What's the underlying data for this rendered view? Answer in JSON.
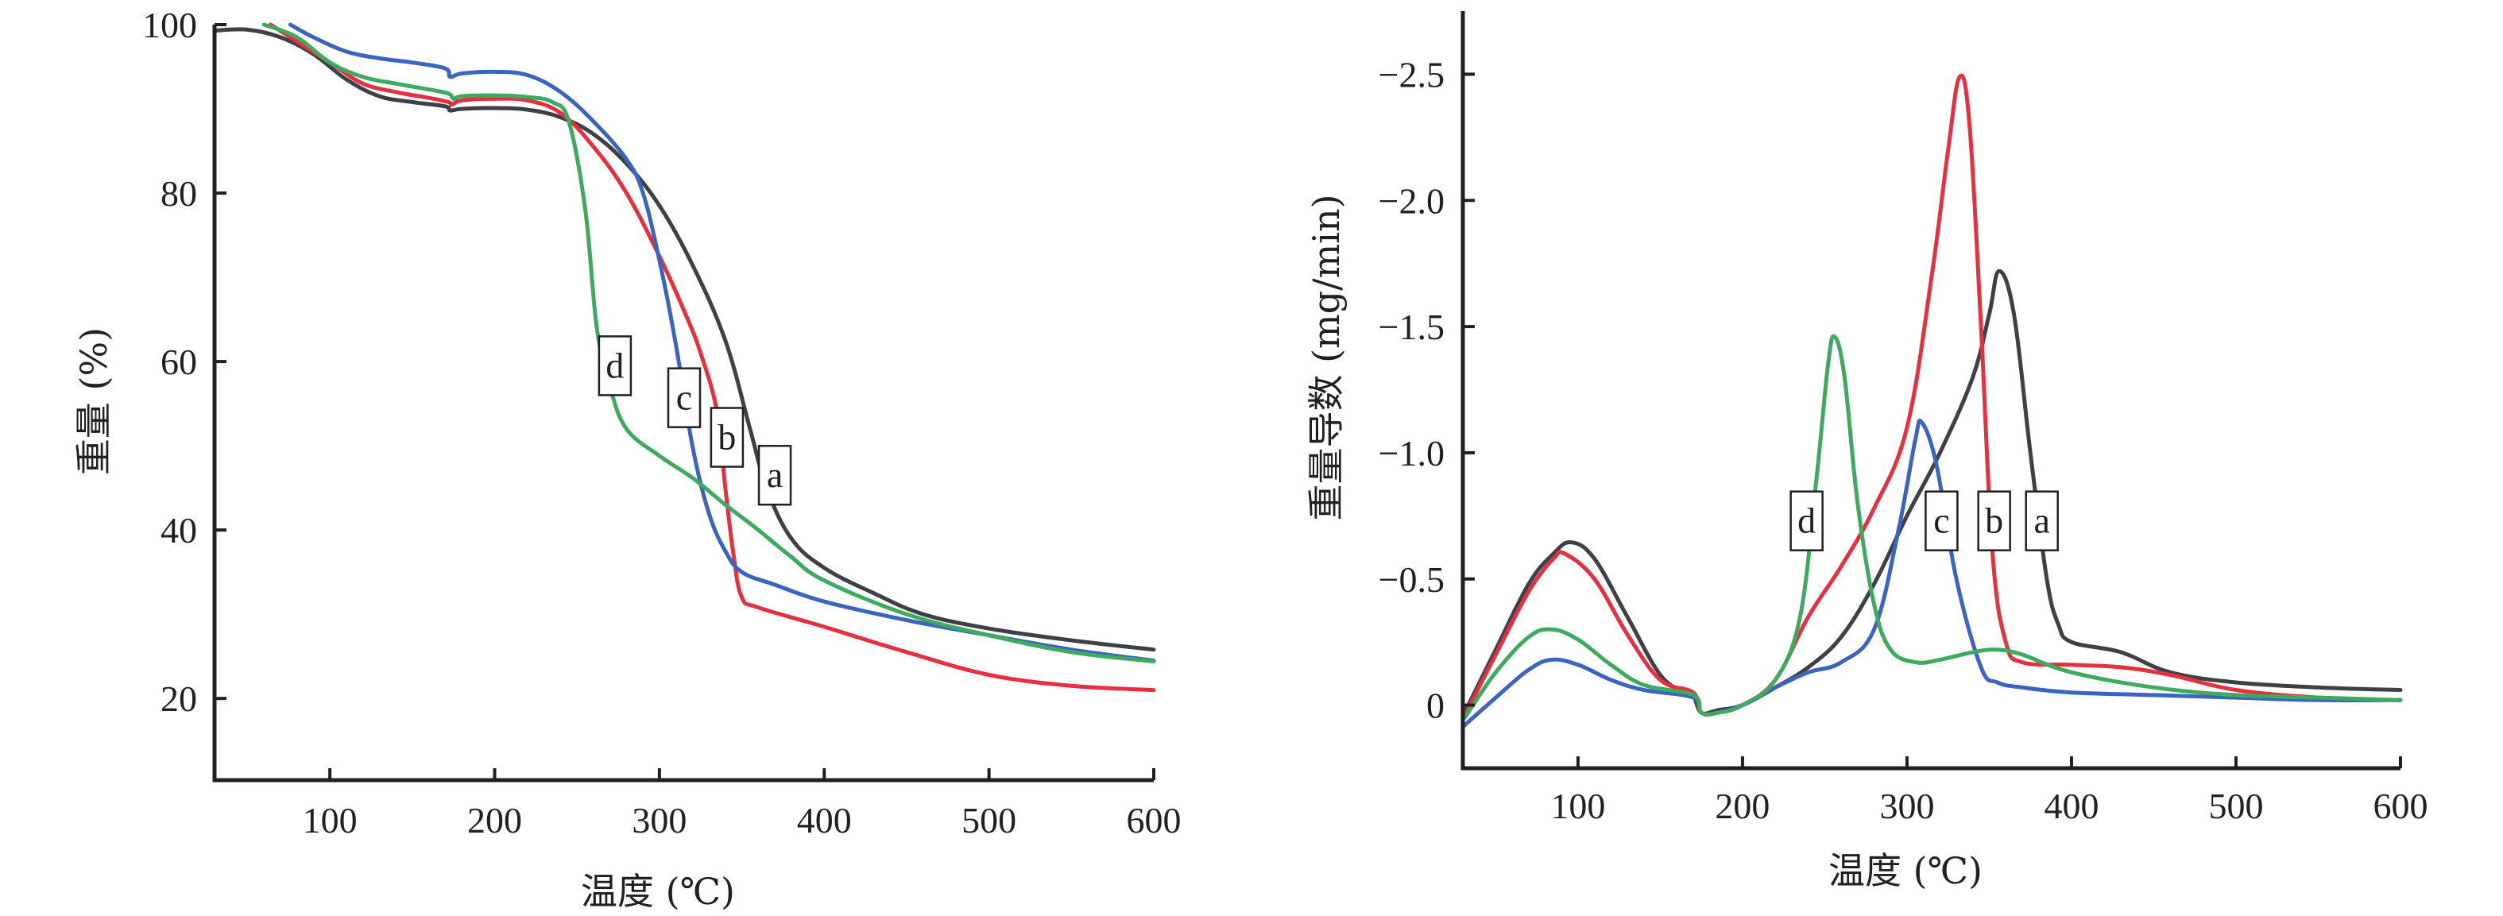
{
  "chart_data": [
    {
      "id": "tg",
      "type": "line",
      "title": "",
      "xlabel": "温度 (℃)",
      "ylabel": "重量 (%)",
      "xlim": [
        30,
        600
      ],
      "ylim": [
        10.3,
        100
      ],
      "y_inverted": false,
      "grid": false,
      "legend": "inline-labels",
      "xticks": [
        100,
        200,
        300,
        400,
        500,
        600
      ],
      "xtick_labels": [
        "100",
        "200",
        "300",
        "400",
        "500",
        "600"
      ],
      "yticks": [
        20,
        40,
        60,
        80,
        100
      ],
      "ytick_labels": [
        "20",
        "40",
        "60",
        "80",
        "100"
      ],
      "series": [
        {
          "name": "a",
          "color": "#3f3f46",
          "x": [
            31,
            50,
            70,
            90,
            110,
            130,
            150,
            170,
            173,
            180,
            200,
            220,
            240,
            260,
            280,
            300,
            320,
            340,
            355,
            365,
            380,
            400,
            430,
            460,
            500,
            550,
            600
          ],
          "y": [
            99.3,
            99.4,
            98.5,
            96.5,
            93.5,
            91.5,
            90.8,
            90.3,
            89.8,
            90.0,
            90.1,
            89.9,
            89.0,
            87.0,
            83.5,
            78.5,
            71.5,
            62.5,
            52.0,
            45.0,
            39.0,
            35.5,
            32.5,
            30.0,
            28.3,
            26.9,
            25.8
          ],
          "label_at": [
            370,
            46.5
          ]
        },
        {
          "name": "b",
          "color": "#e63040",
          "x": [
            64,
            80,
            100,
            120,
            140,
            160,
            172,
            174,
            180,
            200,
            220,
            240,
            260,
            280,
            300,
            315,
            325,
            335,
            340,
            345,
            350,
            360,
            400,
            450,
            500,
            550,
            600
          ],
          "y": [
            100,
            98.0,
            95.5,
            93.0,
            92.0,
            91.3,
            90.8,
            90.5,
            91.0,
            91.2,
            91.0,
            89.5,
            85.5,
            80.0,
            72.5,
            66.0,
            61.0,
            54.0,
            45.0,
            37.0,
            32.0,
            30.8,
            28.5,
            25.5,
            22.8,
            21.5,
            21.0
          ],
          "label_at": [
            341,
            51
          ]
        },
        {
          "name": "c",
          "color": "#3a64c0",
          "x": [
            76,
            90,
            110,
            130,
            150,
            170,
            173,
            180,
            200,
            220,
            240,
            260,
            280,
            290,
            300,
            310,
            320,
            330,
            340,
            350,
            370,
            400,
            450,
            500,
            550,
            600
          ],
          "y": [
            100,
            98.5,
            96.8,
            96.0,
            95.5,
            94.8,
            93.8,
            94.2,
            94.4,
            94.0,
            92.0,
            88.5,
            84.0,
            80.0,
            72.0,
            62.0,
            50.0,
            42.0,
            37.5,
            35.0,
            33.5,
            31.5,
            29.3,
            27.5,
            25.8,
            24.5
          ],
          "label_at": [
            315,
            55.7
          ]
        },
        {
          "name": "d",
          "color": "#3daa60",
          "x": [
            60,
            80,
            100,
            120,
            140,
            160,
            172,
            175,
            180,
            200,
            220,
            235,
            245,
            255,
            262,
            270,
            280,
            300,
            320,
            340,
            360,
            380,
            400,
            450,
            500,
            550,
            600
          ],
          "y": [
            100,
            98.5,
            95.5,
            93.8,
            93.0,
            92.3,
            91.8,
            91.2,
            91.5,
            91.6,
            91.4,
            90.8,
            88.5,
            78.0,
            64.0,
            57.0,
            52.0,
            48.8,
            46.2,
            43.0,
            40.0,
            36.8,
            34.0,
            30.0,
            27.5,
            25.5,
            24.4
          ],
          "label_at": [
            273,
            59.5
          ]
        }
      ]
    },
    {
      "id": "dtg",
      "type": "line",
      "title": "",
      "xlabel": "温度 (℃)",
      "ylabel": "重量导数 (mg/min)",
      "xlim": [
        30,
        600
      ],
      "ylim": [
        0.25,
        -2.75
      ],
      "y_inverted": true,
      "grid": false,
      "legend": "inline-labels",
      "xticks": [
        100,
        200,
        300,
        400,
        500,
        600
      ],
      "xtick_labels": [
        "100",
        "200",
        "300",
        "400",
        "500",
        "600"
      ],
      "yticks": [
        0,
        -0.5,
        -1.0,
        -1.5,
        -2.0,
        -2.5
      ],
      "ytick_labels": [
        "0",
        "−0.5",
        "−1.0",
        "−1.5",
        "−2.0",
        "−2.5"
      ],
      "series": [
        {
          "name": "a",
          "color": "#3f3f46",
          "x": [
            31,
            50,
            70,
            85,
            96,
            110,
            130,
            150,
            165,
            170,
            175,
            185,
            200,
            220,
            240,
            260,
            280,
            300,
            320,
            340,
            350,
            356,
            365,
            375,
            385,
            392,
            400,
            430,
            460,
            500,
            550,
            600
          ],
          "y": [
            0.03,
            -0.22,
            -0.48,
            -0.6,
            -0.645,
            -0.58,
            -0.35,
            -0.12,
            -0.05,
            -0.04,
            0.03,
            0.02,
            0.0,
            -0.07,
            -0.15,
            -0.27,
            -0.48,
            -0.75,
            -1.0,
            -1.3,
            -1.55,
            -1.72,
            -1.55,
            -1.0,
            -0.5,
            -0.32,
            -0.25,
            -0.21,
            -0.13,
            -0.09,
            -0.07,
            -0.06
          ],
          "label_at": [
            382,
            -0.73
          ]
        },
        {
          "name": "b",
          "color": "#e63040",
          "x": [
            31,
            50,
            70,
            85,
            92,
            110,
            130,
            150,
            170,
            175,
            185,
            200,
            220,
            240,
            260,
            280,
            300,
            315,
            325,
            332,
            338,
            345,
            352,
            360,
            370,
            400,
            430,
            460,
            500,
            550,
            600
          ],
          "y": [
            0.04,
            -0.2,
            -0.45,
            -0.58,
            -0.6,
            -0.5,
            -0.28,
            -0.1,
            -0.05,
            0.03,
            0.03,
            0.0,
            -0.1,
            -0.35,
            -0.55,
            -0.78,
            -1.1,
            -1.7,
            -2.2,
            -2.49,
            -2.3,
            -1.5,
            -0.6,
            -0.25,
            -0.17,
            -0.16,
            -0.15,
            -0.12,
            -0.06,
            -0.03,
            -0.02
          ],
          "label_at": [
            353,
            -0.73
          ]
        },
        {
          "name": "c",
          "color": "#3a64c0",
          "x": [
            31,
            50,
            70,
            84,
            100,
            120,
            140,
            170,
            175,
            185,
            200,
            220,
            240,
            260,
            280,
            295,
            305,
            309,
            318,
            330,
            345,
            355,
            370,
            400,
            450,
            500,
            550,
            600
          ],
          "y": [
            0.08,
            -0.03,
            -0.14,
            -0.18,
            -0.16,
            -0.1,
            -0.06,
            -0.03,
            0.03,
            0.03,
            0.0,
            -0.07,
            -0.13,
            -0.17,
            -0.3,
            -0.7,
            -1.05,
            -1.12,
            -0.95,
            -0.5,
            -0.15,
            -0.09,
            -0.07,
            -0.05,
            -0.04,
            -0.03,
            -0.02,
            -0.02
          ],
          "label_at": [
            321,
            -0.73
          ]
        },
        {
          "name": "d",
          "color": "#3daa60",
          "x": [
            31,
            50,
            70,
            84,
            100,
            120,
            140,
            170,
            175,
            185,
            200,
            220,
            235,
            245,
            252,
            256,
            262,
            270,
            280,
            290,
            305,
            320,
            340,
            355,
            370,
            400,
            450,
            500,
            550,
            600
          ],
          "y": [
            0.05,
            -0.13,
            -0.27,
            -0.3,
            -0.26,
            -0.16,
            -0.08,
            -0.04,
            0.03,
            0.03,
            0.0,
            -0.1,
            -0.35,
            -0.9,
            -1.35,
            -1.46,
            -1.3,
            -0.8,
            -0.4,
            -0.22,
            -0.17,
            -0.18,
            -0.21,
            -0.22,
            -0.2,
            -0.13,
            -0.07,
            -0.04,
            -0.03,
            -0.02
          ],
          "label_at": [
            239,
            -0.73
          ]
        }
      ]
    }
  ]
}
